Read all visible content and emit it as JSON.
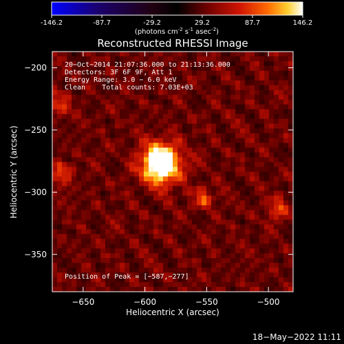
{
  "colorbar": {
    "ticks": [
      "-146.2",
      "-87.7",
      "-29.2",
      "29.2",
      "87.7",
      "146.2"
    ],
    "tick_values": [
      -146.2,
      -87.7,
      -29.2,
      29.2,
      87.7,
      146.2
    ],
    "range": [
      -146.2,
      146.2
    ],
    "units_main": "(photons cm",
    "units_sup1": "-2",
    "units_mid": " s",
    "units_sup2": "-1",
    "units_end": " asec",
    "units_sup3": "-2",
    "units_close": ")"
  },
  "chart_data": {
    "type": "heatmap",
    "title": "Reconstructed RHESSI Image",
    "xlabel": "Heliocentric X (arcsec)",
    "ylabel": "Heliocentric Y (arcsec)",
    "xlim": [
      -675,
      -480
    ],
    "ylim": [
      -380,
      -187
    ],
    "x_ticks": [
      -650,
      -600,
      -550,
      -500
    ],
    "y_ticks": [
      -200,
      -250,
      -300,
      -350
    ],
    "x_tick_labels": [
      "−650",
      "−600",
      "−550",
      "−500"
    ],
    "y_tick_labels": [
      "−200",
      "−250",
      "−300",
      "−350"
    ],
    "annotations": [
      "20−Oct−2014 21:07:36.000 to 21:13:36.000",
      "Detectors: 3F 6F 9F, Att 1",
      "Energy Range: 3.0 − 6.0 keV",
      "Clean    Total counts: 7.03E+03"
    ],
    "peak_label": "Position of Peak = [−587,−277]",
    "peak": [
      -587,
      -277
    ],
    "secondary_sources": [
      {
        "x": -667,
        "y": -285
      },
      {
        "x": -553,
        "y": -305
      },
      {
        "x": -493,
        "y": -313
      },
      {
        "x": -670,
        "y": -230
      }
    ],
    "colormap": [
      "#0000ff",
      "#000000",
      "#7a0000",
      "#e02000",
      "#ff8a00",
      "#ffe24a",
      "#ffffff"
    ]
  },
  "footer": {
    "timestamp": "18−May−2022 11:11"
  }
}
